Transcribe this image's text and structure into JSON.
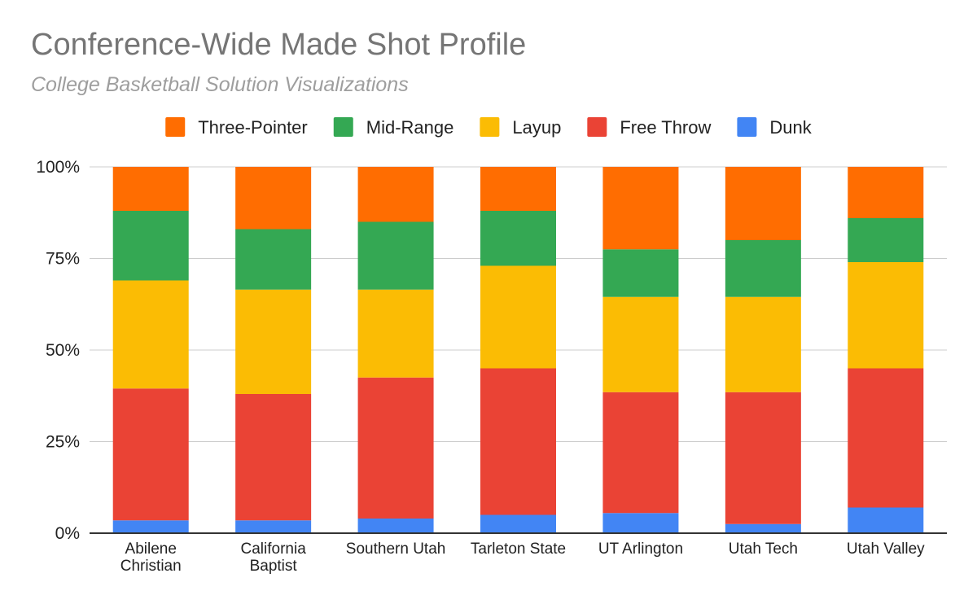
{
  "chart_data": {
    "type": "bar",
    "stacked": true,
    "normalized_percent": true,
    "title": "Conference-Wide Made Shot Profile",
    "subtitle": "College Basketball Solution Visualizations",
    "categories": [
      "Abilene Christian",
      "California Baptist",
      "Southern Utah",
      "Tarleton State",
      "UT Arlington",
      "Utah Tech",
      "Utah Valley"
    ],
    "category_label_lines": [
      [
        "Abilene",
        "Christian"
      ],
      [
        "California",
        "Baptist"
      ],
      [
        "Southern Utah"
      ],
      [
        "Tarleton State"
      ],
      [
        "UT Arlington"
      ],
      [
        "Utah Tech"
      ],
      [
        "Utah Valley"
      ]
    ],
    "series": [
      {
        "name": "Dunk",
        "color": "#4285f4",
        "values": [
          3.5,
          3.5,
          4.0,
          5.0,
          5.5,
          2.5,
          7.0
        ]
      },
      {
        "name": "Free Throw",
        "color": "#ea4335",
        "values": [
          36.0,
          34.5,
          38.5,
          40.0,
          33.0,
          36.0,
          38.0
        ]
      },
      {
        "name": "Layup",
        "color": "#fbbc04",
        "values": [
          29.5,
          28.5,
          24.0,
          28.0,
          26.0,
          26.0,
          29.0
        ]
      },
      {
        "name": "Mid-Range",
        "color": "#34a853",
        "values": [
          19.0,
          16.5,
          18.5,
          15.0,
          13.0,
          15.5,
          12.0
        ]
      },
      {
        "name": "Three-Pointer",
        "color": "#ff6d01",
        "values": [
          12.0,
          17.0,
          15.0,
          12.0,
          22.5,
          20.0,
          14.0
        ]
      }
    ],
    "legend_order": [
      "Three-Pointer",
      "Mid-Range",
      "Layup",
      "Free Throw",
      "Dunk"
    ],
    "y_ticks": [
      "0%",
      "25%",
      "50%",
      "75%",
      "100%"
    ],
    "ylim": [
      0,
      100
    ],
    "xlabel": "",
    "ylabel": "",
    "grid": true,
    "legend_position": "top"
  }
}
